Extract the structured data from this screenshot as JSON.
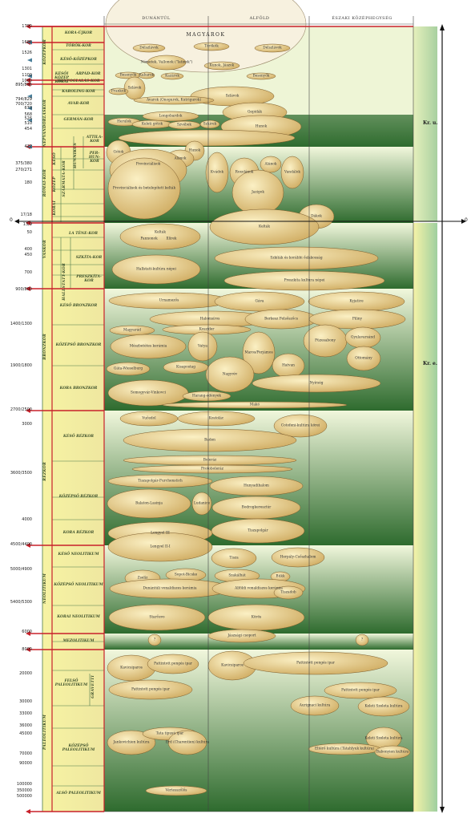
{
  "regions": [
    "DUNÁNTÚL",
    "ALFÖLD",
    "ÉSZAKI KÖZÉPHEGYSÉG"
  ],
  "eras": {
    "ad": "Kr. u.",
    "bc": "Kr. e."
  },
  "zero_label": "0",
  "date_labels": [
    "1790",
    "1686",
    "1526",
    "1301",
    "1100",
    "1000",
    "895/896",
    "794/829",
    "700/720",
    "670",
    "568",
    "526",
    "510",
    "454",
    "422",
    "375/380",
    "270/271",
    "180",
    "17/18",
    "13/9",
    "50",
    "400",
    "450",
    "700",
    "900/800",
    "1400/1300",
    "1900/1800",
    "2700/2500",
    "3000",
    "3600/3500",
    "4000",
    "4500/4400",
    "5000/4900",
    "5400/5300",
    "6000",
    "8000",
    "20000",
    "30000",
    "33000",
    "36000",
    "45000",
    "70000",
    "90000",
    "100000",
    "350000",
    "500000"
  ],
  "main_periods": [
    "KÖZÉPKOR",
    "NÉPVÁNDORLÁSKOR",
    "RÓMAI-KOR",
    "VASKOR",
    "BRONZKOR",
    "RÉZKOR",
    "NEOLITIKUM",
    "PALEOLITIKUM"
  ],
  "sub_periods": [
    "KORA-ÚJKOR",
    "TÖRÖK-KOR",
    "KÉSŐ-KÖZÉPKOR",
    "KÉSŐI KÖZÉP KORAI",
    "ÁRPÁD-KOR",
    "HONFOGLALÁS-KOR",
    "KAROLING-KOR",
    "AVAR-KOR",
    "GERMÁN-KOR",
    "KÉSŐ",
    "KÖZÉP",
    "KORAI",
    "SZÁRMATA-KOR",
    "HUNNIKUS",
    "ATTILA-KOR",
    "PER-HUN-KOR",
    "LA TÈNE-KOR",
    "SZKÍTA-KOR",
    "PRESZKÍTA-KOR",
    "HALLSTATT-KOR",
    "KÉSŐ BRONZKOR",
    "KÖZÉPSŐ BRONZKOR",
    "KORA BRONZKOR",
    "KÉSŐ RÉZKOR",
    "KÖZÉPSŐ RÉZKOR",
    "KORA RÉZKOR",
    "KÉSŐ NEOLITIKUM",
    "KÖZÉPSŐ NEOLITIKUM",
    "KORAI NEOLITIKUM",
    "MEZOLITIKUM",
    "FELSŐ PALEOLITIKUM",
    "GRAVETTI",
    "KÖZÉPSŐ PALEOLITIKUM",
    "ALSÓ PALEOLITIKUM"
  ],
  "cultures": {
    "magyarok": "MAGYAROK",
    "list": [
      "Délszlávok",
      "Törökök",
      "Délszlávok",
      "Németek, Vallonok (\"latinok\")",
      "Kunok, Jászok",
      "Besenyők",
      "Kabarok",
      "Kazárok",
      "Besenyők",
      "Szlávok",
      "Frankok",
      "Szlávok",
      "Avarok (Onogurok, Kutrigurok)",
      "Longobardok",
      "Herulok",
      "Keleti gótok",
      "Szvébek",
      "Szkírek",
      "Gepidák",
      "Hunok",
      "Gótok",
      "Hunok",
      "Alánok",
      "Provinciálisok",
      "Provinciálisok és betelepített kelták",
      "Kvádok",
      "Roxolánok",
      "Alánok",
      "Vandálok",
      "Jazigok",
      "Dákok",
      "Kelták",
      "Kelták",
      "Pannonok",
      "Illírek",
      "Hallstatt-kultúra népei",
      "Szkíták és korábbi őslakosság",
      "Preszkíta kultúra népei",
      "Urnamezős",
      "Gáva",
      "Kyjatice",
      "Halomsíros",
      "Berkesz Felsőszőcs",
      "Piliny",
      "Magyarád",
      "Koszider",
      "Mészbetétes kerámia",
      "Vatya",
      "Maros/Perjámos",
      "Füzesabony",
      "Gyulavarsánd",
      "Ottomány",
      "Gáta-Wieselburg",
      "Kisapostag",
      "Nagyrév",
      "Hatvan",
      "Nyírség",
      "Somogyvár-Vinkovci",
      "Harang-edények",
      "Makó",
      "Vučedol",
      "Kostolác",
      "Cotofeni-kultúra körei",
      "Baden",
      "Boleráz",
      "Protoboleráz",
      "Tiszapolgár-Furchenstich",
      "Hunyadihalom",
      "Balaton-Lasinja",
      "Ludanice",
      "Bodrogkeresztúr",
      "Tiszapolgár",
      "Lengyel III",
      "Lengyel II-I",
      "Tisza",
      "Herpály-Csőszhalom",
      "Zselíz",
      "Sopot-Bicske",
      "Szakálhát",
      "Bükk",
      "Dunántúli vonaldíszes kerámia",
      "Alföldi vonaldíszes kerámia",
      "Tiszadob",
      "Starčevo",
      "Körös",
      "?",
      "Jászsági csoport",
      "?",
      "Kavicsiparos",
      "Pattintott pengés ipar",
      "Kavicsiparos",
      "Pattintott pengés ipar",
      "Pattintott pengés ipar",
      "Pattintott pengés ipar",
      "Aurignaci kultúra",
      "Keleti Szeleta kultúra",
      "Jankovichien kultúra",
      "Tata típusú ipar",
      "Érd (Charentien) kultúra",
      "Keleti Szeleta kultúra",
      "Eltérő kultúra (Tátahlyuk kultúra)",
      "Babonyien kultúra",
      "Vértesszőlős"
    ]
  },
  "colors": {
    "red_line": "#c8202a",
    "band_yellow": "#f4ef9a",
    "green_dark": "#2e6b2e",
    "green_light": "#bfe0bf",
    "ellipse_fill": "#e2c882",
    "arrow_blue": "#4a7f9a"
  }
}
